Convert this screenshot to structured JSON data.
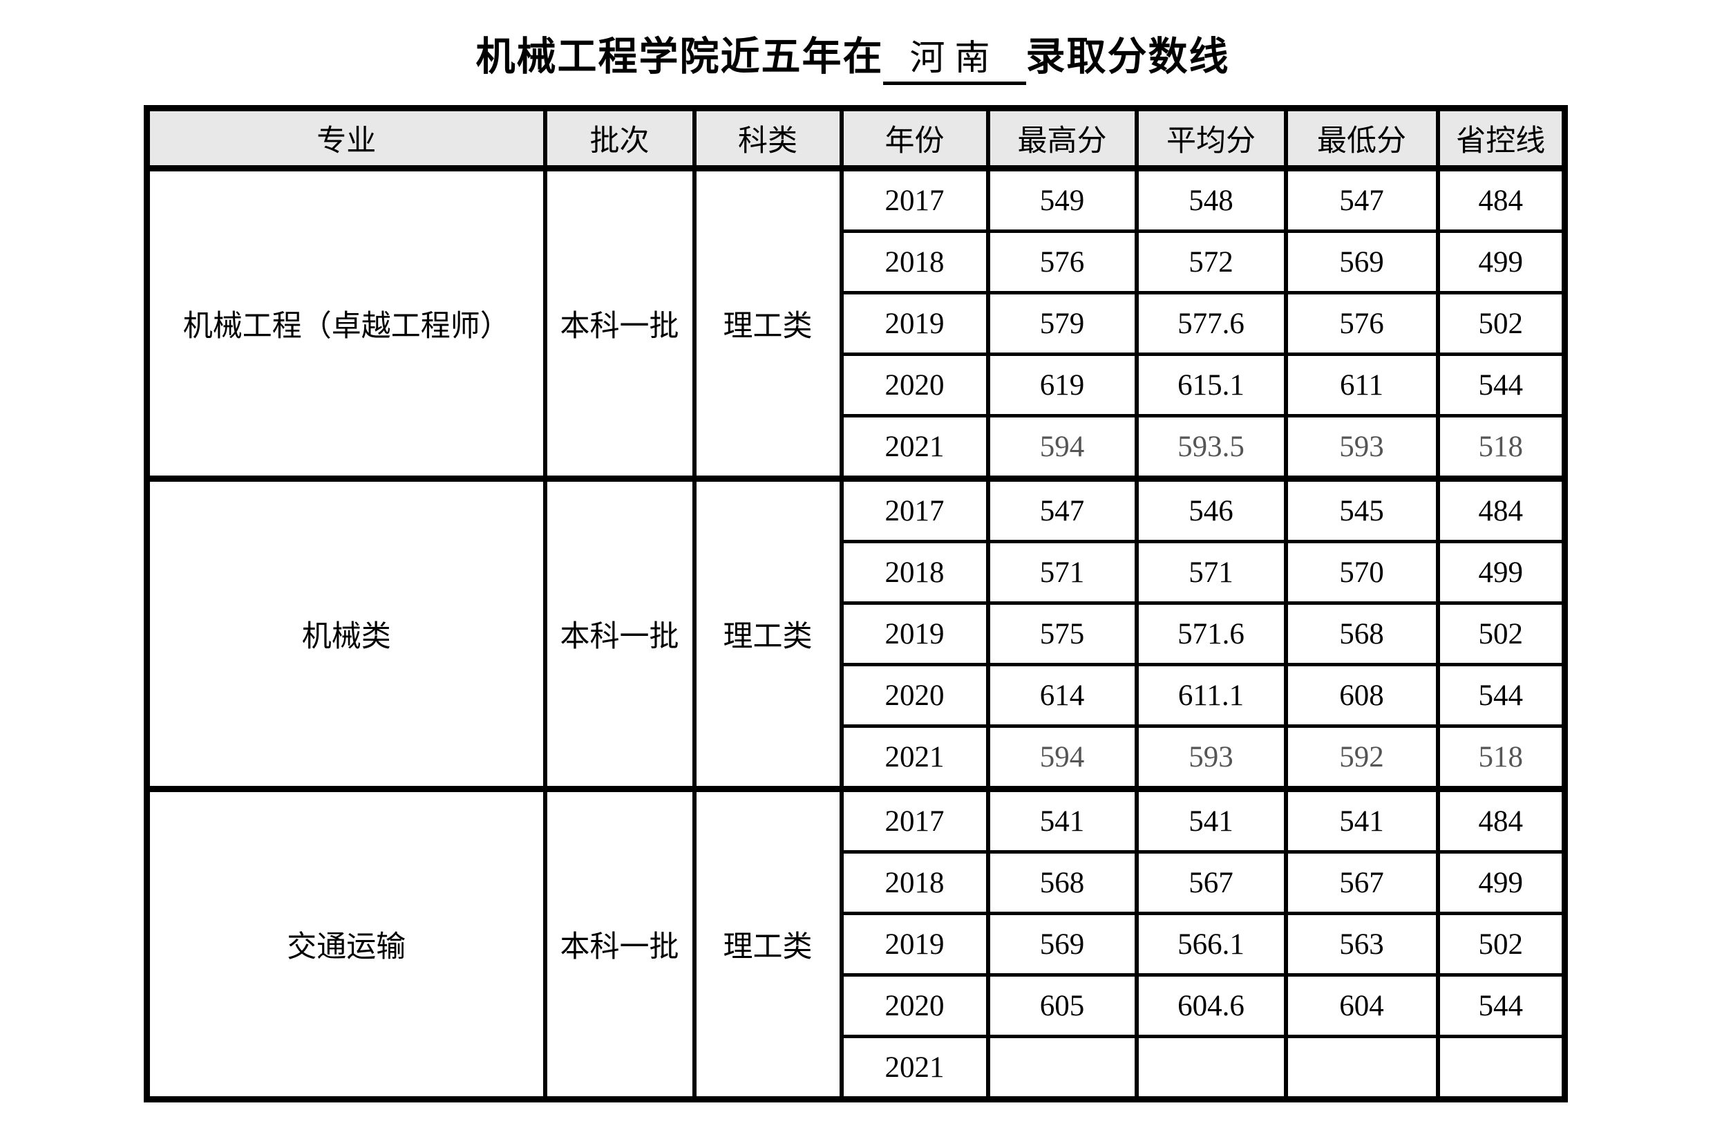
{
  "title": {
    "prefix": "机械工程学院近五年在",
    "province": "河南",
    "suffix": "录取分数线"
  },
  "table": {
    "headers": [
      "专业",
      "批次",
      "科类",
      "年份",
      "最高分",
      "平均分",
      "最低分",
      "省控线"
    ],
    "groups": [
      {
        "major": "机械工程（卓越工程师）",
        "batch": "本科一批",
        "category": "理工类",
        "rows": [
          {
            "year": "2017",
            "max": "549",
            "avg": "548",
            "min": "547",
            "line": "484",
            "muted": false
          },
          {
            "year": "2018",
            "max": "576",
            "avg": "572",
            "min": "569",
            "line": "499",
            "muted": false
          },
          {
            "year": "2019",
            "max": "579",
            "avg": "577.6",
            "min": "576",
            "line": "502",
            "muted": false
          },
          {
            "year": "2020",
            "max": "619",
            "avg": "615.1",
            "min": "611",
            "line": "544",
            "muted": false
          },
          {
            "year": "2021",
            "max": "594",
            "avg": "593.5",
            "min": "593",
            "line": "518",
            "muted": true
          }
        ]
      },
      {
        "major": "机械类",
        "batch": "本科一批",
        "category": "理工类",
        "rows": [
          {
            "year": "2017",
            "max": "547",
            "avg": "546",
            "min": "545",
            "line": "484",
            "muted": false
          },
          {
            "year": "2018",
            "max": "571",
            "avg": "571",
            "min": "570",
            "line": "499",
            "muted": false
          },
          {
            "year": "2019",
            "max": "575",
            "avg": "571.6",
            "min": "568",
            "line": "502",
            "muted": false
          },
          {
            "year": "2020",
            "max": "614",
            "avg": "611.1",
            "min": "608",
            "line": "544",
            "muted": false
          },
          {
            "year": "2021",
            "max": "594",
            "avg": "593",
            "min": "592",
            "line": "518",
            "muted": true
          }
        ]
      },
      {
        "major": "交通运输",
        "batch": "本科一批",
        "category": "理工类",
        "rows": [
          {
            "year": "2017",
            "max": "541",
            "avg": "541",
            "min": "541",
            "line": "484",
            "muted": false
          },
          {
            "year": "2018",
            "max": "568",
            "avg": "567",
            "min": "567",
            "line": "499",
            "muted": false
          },
          {
            "year": "2019",
            "max": "569",
            "avg": "566.1",
            "min": "563",
            "line": "502",
            "muted": false
          },
          {
            "year": "2020",
            "max": "605",
            "avg": "604.6",
            "min": "604",
            "line": "544",
            "muted": false
          },
          {
            "year": "2021",
            "max": "",
            "avg": "",
            "min": "",
            "line": "",
            "muted": false
          }
        ]
      }
    ]
  },
  "colors": {
    "header_bg": "#e8e8e8",
    "border": "#000000",
    "text": "#000000",
    "muted_text": "#555555"
  }
}
